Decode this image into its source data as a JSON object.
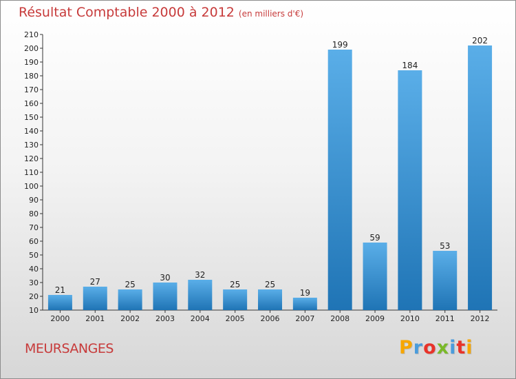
{
  "title": "Résultat Comptable 2000 à 2012",
  "subtitle": "(en milliers d'€)",
  "commune": "MEURSANGES",
  "logo": {
    "letters": [
      "P",
      "r",
      "o",
      "x",
      "i",
      "t",
      "i"
    ],
    "colors": [
      "#f7a600",
      "#4a9cdc",
      "#e8332a",
      "#7ab929",
      "#4a9cdc",
      "#e8332a",
      "#f7a600"
    ]
  },
  "colors": {
    "bar_light": "#5aaee8",
    "bar_dark": "#1f74b5",
    "title": "#c73a3a"
  },
  "chart_data": {
    "type": "bar",
    "title": "Résultat Comptable 2000 à 2012",
    "categories": [
      "2000",
      "2001",
      "2002",
      "2003",
      "2004",
      "2005",
      "2006",
      "2007",
      "2008",
      "2009",
      "2010",
      "2011",
      "2012"
    ],
    "values": [
      21,
      27,
      25,
      30,
      32,
      25,
      25,
      19,
      199,
      59,
      184,
      53,
      202
    ],
    "ylim": [
      10,
      210
    ],
    "yticks": [
      10,
      20,
      30,
      40,
      50,
      60,
      70,
      80,
      90,
      100,
      110,
      120,
      130,
      140,
      150,
      160,
      170,
      180,
      190,
      200,
      210
    ],
    "grid": false,
    "xlabel": "",
    "ylabel": ""
  }
}
